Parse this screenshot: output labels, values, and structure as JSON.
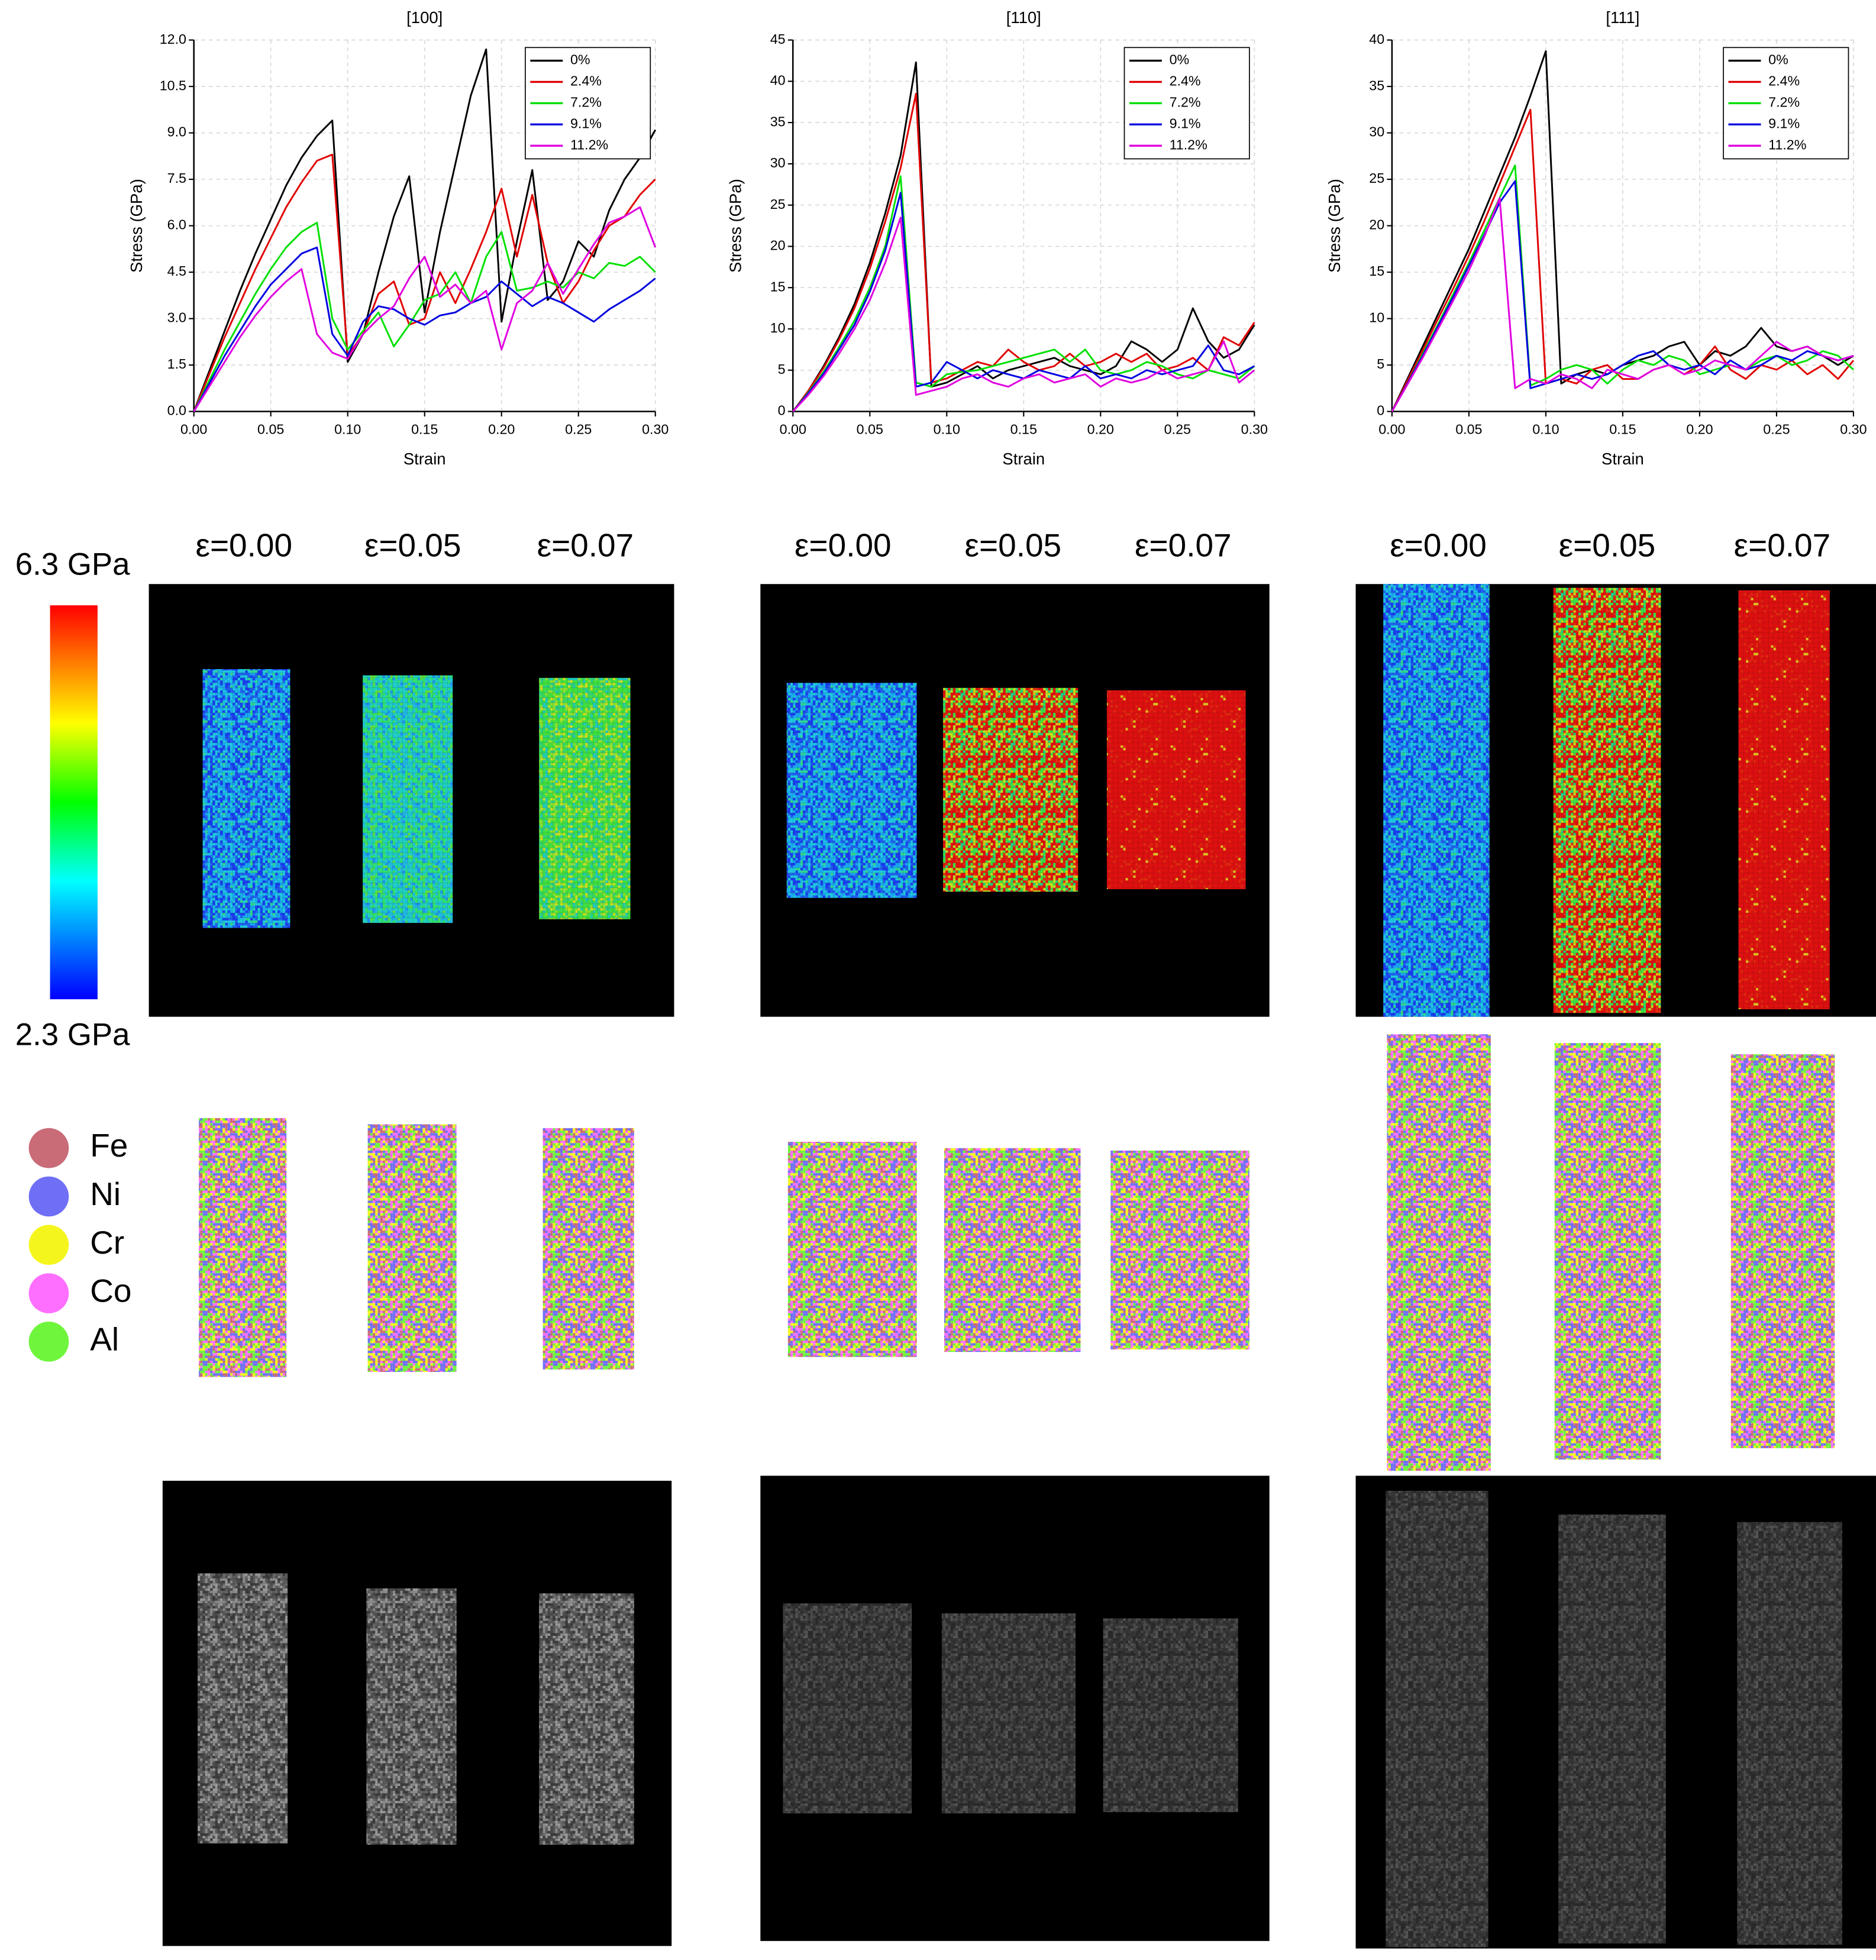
{
  "chart_data": [
    {
      "type": "line",
      "title": "[100]",
      "x_label": "Strain",
      "y_label": "Stress (GPa)",
      "grid": true,
      "legend": "upper right",
      "xlim": [
        0,
        0.3
      ],
      "ylim": [
        0,
        12
      ],
      "xticks": [
        {
          "value": 0,
          "label": "0.00"
        },
        {
          "value": 0.05,
          "label": "0.05"
        },
        {
          "value": 0.1,
          "label": "0.10"
        },
        {
          "value": 0.15,
          "label": "0.15"
        },
        {
          "value": 0.2,
          "label": "0.20"
        },
        {
          "value": 0.25,
          "label": "0.25"
        },
        {
          "value": 0.3,
          "label": "0.30"
        }
      ],
      "yticks": [
        {
          "value": 0,
          "label": "0.0"
        },
        1.5,
        {
          "value": 3,
          "label": "3.0"
        },
        4.5,
        {
          "value": 6,
          "label": "6.0"
        },
        7.5,
        {
          "value": 9,
          "label": "9.0"
        },
        10.5,
        {
          "value": 12,
          "label": "12.0"
        }
      ],
      "x": [
        0,
        0.01,
        0.02,
        0.03,
        0.04,
        0.05,
        0.06,
        0.07,
        0.08,
        0.09,
        0.1,
        0.11,
        0.12,
        0.13,
        0.14,
        0.15,
        0.16,
        0.17,
        0.18,
        0.19,
        0.2,
        0.21,
        0.22,
        0.23,
        0.24,
        0.25,
        0.26,
        0.27,
        0.28,
        0.29,
        0.3
      ],
      "series": [
        {
          "name": "0%",
          "color": "#000000",
          "values": [
            0,
            1.3,
            2.6,
            3.9,
            5.1,
            6.2,
            7.3,
            8.2,
            8.9,
            9.4,
            1.6,
            2.5,
            4.5,
            6.3,
            7.6,
            3.2,
            5.8,
            8.0,
            10.2,
            11.7,
            2.9,
            5.5,
            7.8,
            3.6,
            4.2,
            5.5,
            5.0,
            6.5,
            7.5,
            8.2,
            9.1
          ]
        },
        {
          "name": "2.4%",
          "color": "#e00000",
          "values": [
            0,
            1.2,
            2.4,
            3.5,
            4.6,
            5.6,
            6.6,
            7.4,
            8.1,
            8.3,
            1.8,
            2.5,
            3.8,
            4.2,
            2.8,
            3.0,
            4.5,
            3.5,
            4.6,
            5.8,
            7.2,
            5.0,
            7.0,
            4.8,
            3.5,
            4.2,
            5.2,
            6.0,
            6.3,
            7.0,
            7.5
          ]
        },
        {
          "name": "7.2%",
          "color": "#00e000",
          "values": [
            0,
            1.0,
            2.0,
            2.9,
            3.8,
            4.6,
            5.3,
            5.8,
            6.1,
            3.0,
            2.0,
            2.6,
            3.2,
            2.1,
            2.8,
            3.6,
            3.8,
            4.5,
            3.5,
            5.0,
            5.8,
            3.9,
            4.0,
            4.2,
            4.0,
            4.5,
            4.3,
            4.8,
            4.7,
            5.0,
            4.5
          ]
        },
        {
          "name": "9.1%",
          "color": "#0000e0",
          "values": [
            0,
            0.9,
            1.8,
            2.6,
            3.4,
            4.1,
            4.6,
            5.1,
            5.3,
            2.5,
            1.8,
            2.9,
            3.4,
            3.3,
            3.0,
            2.8,
            3.1,
            3.2,
            3.5,
            3.7,
            4.2,
            3.8,
            3.4,
            3.7,
            3.5,
            3.2,
            2.9,
            3.3,
            3.6,
            3.9,
            4.3
          ]
        },
        {
          "name": "11.2%",
          "color": "#e000e0",
          "values": [
            0,
            0.8,
            1.6,
            2.4,
            3.1,
            3.7,
            4.2,
            4.6,
            2.5,
            1.9,
            1.7,
            2.5,
            3.0,
            3.4,
            4.3,
            5.0,
            3.7,
            4.1,
            3.5,
            3.9,
            2.0,
            3.5,
            3.9,
            4.8,
            3.8,
            4.6,
            5.4,
            6.1,
            6.3,
            6.6,
            5.3
          ]
        }
      ]
    },
    {
      "type": "line",
      "title": "[110]",
      "x_label": "Strain",
      "y_label": "Stress (GPa)",
      "grid": true,
      "legend": "upper right",
      "xlim": [
        0,
        0.3
      ],
      "ylim": [
        0,
        45
      ],
      "xticks": [
        {
          "value": 0,
          "label": "0.00"
        },
        {
          "value": 0.05,
          "label": "0.05"
        },
        {
          "value": 0.1,
          "label": "0.10"
        },
        {
          "value": 0.15,
          "label": "0.15"
        },
        {
          "value": 0.2,
          "label": "0.20"
        },
        {
          "value": 0.25,
          "label": "0.25"
        },
        {
          "value": 0.3,
          "label": "0.30"
        }
      ],
      "yticks": [
        0,
        5,
        10,
        15,
        20,
        25,
        30,
        35,
        40,
        45
      ],
      "x": [
        0,
        0.01,
        0.02,
        0.03,
        0.04,
        0.05,
        0.06,
        0.07,
        0.08,
        0.09,
        0.1,
        0.11,
        0.12,
        0.13,
        0.14,
        0.15,
        0.16,
        0.17,
        0.18,
        0.19,
        0.2,
        0.21,
        0.22,
        0.23,
        0.24,
        0.25,
        0.26,
        0.27,
        0.28,
        0.29,
        0.3
      ],
      "series": [
        {
          "name": "0%",
          "color": "#000000",
          "values": [
            0,
            2.5,
            5.5,
            9,
            13,
            18,
            24,
            31,
            42.3,
            3,
            3.5,
            4.5,
            5.5,
            4,
            5,
            5.5,
            6,
            6.5,
            5.5,
            5,
            4.5,
            5.5,
            8.5,
            7.5,
            6,
            7.5,
            12.5,
            8.5,
            6.5,
            7.5,
            10.5
          ]
        },
        {
          "name": "2.4%",
          "color": "#e00000",
          "values": [
            0,
            2.5,
            5.3,
            8.7,
            12.5,
            17.3,
            23,
            29.5,
            38.5,
            3.5,
            4,
            5,
            6,
            5.5,
            7.5,
            6,
            5,
            5.5,
            7,
            5.5,
            6,
            7,
            6,
            7,
            5,
            5.5,
            6.5,
            5,
            9,
            8,
            10.8
          ]
        },
        {
          "name": "7.2%",
          "color": "#00e000",
          "values": [
            0,
            2.3,
            4.8,
            7.8,
            11,
            15,
            20,
            28.5,
            3.5,
            3,
            4.5,
            4.8,
            5,
            5.5,
            6,
            6.5,
            7,
            7.5,
            6,
            7.5,
            5,
            4.5,
            5,
            6,
            5.5,
            4.5,
            4,
            5,
            4.5,
            4,
            5.5
          ]
        },
        {
          "name": "9.1%",
          "color": "#0000e0",
          "values": [
            0,
            2.2,
            4.6,
            7.5,
            10.5,
            14.5,
            19.5,
            26.5,
            3,
            3.5,
            6,
            5,
            4,
            5,
            4.5,
            4,
            5,
            4.5,
            4,
            5.5,
            4,
            4.5,
            4,
            5,
            4.5,
            5,
            5.5,
            8,
            5,
            4.5,
            5.5
          ]
        },
        {
          "name": "11.2%",
          "color": "#e000e0",
          "values": [
            0,
            2,
            4.3,
            7,
            10,
            13.5,
            18,
            23.5,
            2,
            2.5,
            3,
            4,
            4.5,
            3.5,
            3,
            4,
            4.5,
            3.5,
            4,
            4.5,
            3,
            4,
            3.5,
            4,
            5,
            4,
            4.5,
            5,
            8.5,
            3.5,
            5
          ]
        }
      ]
    },
    {
      "type": "line",
      "title": "[111]",
      "x_label": "Strain",
      "y_label": "Stress (GPa)",
      "grid": true,
      "legend": "upper right",
      "xlim": [
        0,
        0.3
      ],
      "ylim": [
        0,
        40
      ],
      "xticks": [
        {
          "value": 0,
          "label": "0.00"
        },
        {
          "value": 0.05,
          "label": "0.05"
        },
        {
          "value": 0.1,
          "label": "0.10"
        },
        {
          "value": 0.15,
          "label": "0.15"
        },
        {
          "value": 0.2,
          "label": "0.20"
        },
        {
          "value": 0.25,
          "label": "0.25"
        },
        {
          "value": 0.3,
          "label": "0.30"
        }
      ],
      "yticks": [
        0,
        5,
        10,
        15,
        20,
        25,
        30,
        35,
        40
      ],
      "x": [
        0,
        0.01,
        0.02,
        0.03,
        0.04,
        0.05,
        0.06,
        0.07,
        0.08,
        0.09,
        0.1,
        0.11,
        0.12,
        0.13,
        0.14,
        0.15,
        0.16,
        0.17,
        0.18,
        0.19,
        0.2,
        0.21,
        0.22,
        0.23,
        0.24,
        0.25,
        0.26,
        0.27,
        0.28,
        0.29,
        0.3
      ],
      "series": [
        {
          "name": "0%",
          "color": "#000000",
          "values": [
            0,
            3.5,
            7,
            10.5,
            14,
            17.5,
            21.5,
            25.5,
            29.5,
            34,
            38.8,
            3,
            4,
            4.5,
            4,
            5,
            5.5,
            6,
            7,
            7.5,
            5,
            6.5,
            6,
            7,
            9,
            7,
            6.5,
            7,
            6,
            5,
            6
          ]
        },
        {
          "name": "2.4%",
          "color": "#e00000",
          "values": [
            0,
            3.3,
            6.6,
            10,
            13.3,
            16.8,
            20.5,
            24.5,
            28.5,
            32.5,
            3,
            3.5,
            3,
            4.5,
            5,
            3.5,
            3.5,
            4.5,
            5,
            4,
            5,
            7,
            4.5,
            3.5,
            5,
            4.5,
            5.5,
            4,
            5,
            3.5,
            5.5
          ]
        },
        {
          "name": "7.2%",
          "color": "#00e000",
          "values": [
            0,
            3,
            6.2,
            9.4,
            12.7,
            16,
            19.5,
            23,
            26.5,
            2.8,
            3.5,
            4.5,
            5,
            4.5,
            3,
            4.5,
            5.5,
            5,
            6,
            5.5,
            4,
            4.5,
            5,
            4.5,
            5.5,
            6,
            5,
            5.5,
            6.5,
            6,
            4.5
          ]
        },
        {
          "name": "9.1%",
          "color": "#0000e0",
          "values": [
            0,
            3,
            6,
            9.2,
            12.4,
            15.7,
            19,
            22.5,
            24.8,
            2.5,
            3,
            3.5,
            4,
            3.5,
            4,
            5,
            6,
            6.5,
            5,
            4.5,
            5,
            4,
            5.5,
            4.5,
            5,
            6,
            5.5,
            6.5,
            6,
            5.5,
            6
          ]
        },
        {
          "name": "11.2%",
          "color": "#e000e0",
          "values": [
            0,
            2.9,
            5.8,
            8.9,
            12,
            15.2,
            18.8,
            23,
            2.5,
            3.5,
            3,
            4,
            3.5,
            2.5,
            4.5,
            4,
            3.5,
            4.5,
            5,
            4,
            4.5,
            5.5,
            5,
            4.5,
            6,
            7.5,
            6.5,
            7,
            6,
            5.5,
            6
          ]
        }
      ]
    }
  ],
  "stress_panels": {
    "groups": [
      {
        "strain_labels": [
          "ε=0.00",
          "ε=0.05",
          "ε=0.07"
        ]
      },
      {
        "strain_labels": [
          "ε=0.00",
          "ε=0.05",
          "ε=0.07"
        ]
      },
      {
        "strain_labels": [
          "ε=0.00",
          "ε=0.05",
          "ε=0.07"
        ]
      }
    ],
    "colorbar": {
      "max_label": "6.3 GPa",
      "min_label": "2.3 GPa"
    }
  },
  "elements": [
    {
      "name": "Fe",
      "color": "#c96c78"
    },
    {
      "name": "Ni",
      "color": "#6f6ff5"
    },
    {
      "name": "Cr",
      "color": "#f5f51e"
    },
    {
      "name": "Co",
      "color": "#ff6fff"
    },
    {
      "name": "Al",
      "color": "#6ff53c"
    }
  ]
}
